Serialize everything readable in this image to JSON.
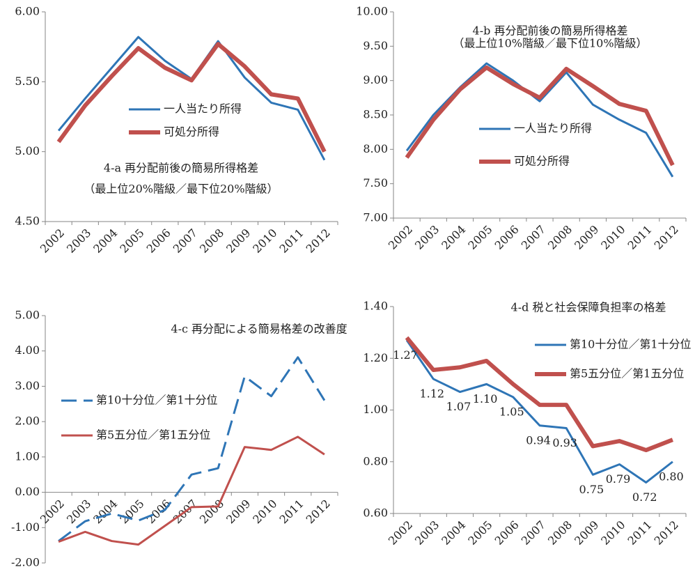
{
  "chart_data": [
    {
      "type": "line",
      "title": "4-a 再分配前後の簡易所得格差",
      "subtitle": "（最上位20%階級／最下位20%階級）",
      "categories": [
        "2002",
        "2003",
        "2004",
        "2005",
        "2006",
        "2007",
        "2008",
        "2009",
        "2010",
        "2011",
        "2012"
      ],
      "series": [
        {
          "name": "一人当たり所得",
          "color": "#2e75b6",
          "values": [
            5.15,
            5.38,
            5.6,
            5.82,
            5.65,
            5.52,
            5.79,
            5.53,
            5.35,
            5.3,
            4.94
          ]
        },
        {
          "name": "可処分所得",
          "color": "#c0504d",
          "values": [
            5.07,
            5.33,
            5.54,
            5.74,
            5.6,
            5.51,
            5.77,
            5.61,
            5.41,
            5.38,
            5.0
          ]
        }
      ],
      "ylim": [
        4.5,
        6.0
      ],
      "yticks": [
        {
          "value": 4.5,
          "label": "4.50"
        },
        {
          "value": 5,
          "label": "5.00"
        },
        {
          "value": 5.5,
          "label": "5.50"
        },
        {
          "value": 6,
          "label": "6.00"
        }
      ]
    },
    {
      "type": "line",
      "title": "4-b 再分配前後の簡易所得格差",
      "subtitle": "（最上位10%階級／最下位10%階級）",
      "categories": [
        "2002",
        "2003",
        "2004",
        "2005",
        "2006",
        "2007",
        "2008",
        "2009",
        "2010",
        "2011",
        "2012"
      ],
      "series": [
        {
          "name": "一人当たり所得",
          "color": "#2e75b6",
          "values": [
            7.98,
            8.5,
            8.9,
            9.25,
            9.0,
            8.7,
            9.12,
            8.65,
            8.43,
            8.24,
            7.6
          ]
        },
        {
          "name": "可処分所得",
          "color": "#c0504d",
          "values": [
            7.88,
            8.43,
            8.87,
            9.19,
            8.95,
            8.75,
            9.17,
            8.92,
            8.66,
            8.56,
            7.77
          ]
        }
      ],
      "ylim": [
        7.0,
        10.0
      ],
      "yticks": [
        {
          "value": 7,
          "label": "7.00"
        },
        {
          "value": 7.5,
          "label": "7.50"
        },
        {
          "value": 8,
          "label": "8.00"
        },
        {
          "value": 8.5,
          "label": "8.50"
        },
        {
          "value": 9,
          "label": "9.00"
        },
        {
          "value": 9.5,
          "label": "9.50"
        },
        {
          "value": 10,
          "label": "10.00"
        }
      ]
    },
    {
      "type": "line",
      "title": "4-c 再分配による簡易格差の改善度",
      "categories": [
        "2002",
        "2003",
        "2004",
        "2005",
        "2006",
        "2007",
        "2008",
        "2009",
        "2010",
        "2011",
        "2012"
      ],
      "series": [
        {
          "name": "第10十分位／第1十分位",
          "color": "#2e75b6",
          "dashed": true,
          "values": [
            -1.38,
            -0.82,
            -0.6,
            -0.8,
            -0.5,
            0.5,
            0.68,
            3.28,
            2.72,
            3.82,
            2.6
          ]
        },
        {
          "name": "第5五分位／第1五分位",
          "color": "#c0504d",
          "values": [
            -1.4,
            -1.12,
            -1.38,
            -1.48,
            -0.95,
            -0.42,
            -0.4,
            1.28,
            1.2,
            1.57,
            1.07
          ]
        }
      ],
      "ylim": [
        -2.0,
        5.0
      ],
      "yticks": [
        {
          "value": -2,
          "label": "-2.00"
        },
        {
          "value": -1,
          "label": "-1.00"
        },
        {
          "value": 0,
          "label": "0.00"
        },
        {
          "value": 1,
          "label": "1.00"
        },
        {
          "value": 2,
          "label": "2.00"
        },
        {
          "value": 3,
          "label": "3.00"
        },
        {
          "value": 4,
          "label": "4.00"
        },
        {
          "value": 5,
          "label": "5.00"
        }
      ]
    },
    {
      "type": "line",
      "title": "4-d 税と社会保障負担率の格差",
      "categories": [
        "2002",
        "2003",
        "2004",
        "2005",
        "2006",
        "2007",
        "2008",
        "2009",
        "2010",
        "2011",
        "2012"
      ],
      "series": [
        {
          "name": "第10十分位／第1十分位",
          "color": "#2e75b6",
          "values": [
            1.27,
            1.12,
            1.07,
            1.1,
            1.05,
            0.94,
            0.93,
            0.75,
            0.79,
            0.72,
            0.8
          ],
          "value_labels": [
            "1.27",
            "1.12",
            "1.07",
            "1.10",
            "1.05",
            "0.94",
            "0.93",
            "0.75",
            "0.79",
            "0.72",
            "0.80"
          ]
        },
        {
          "name": "第5五分位／第1五分位",
          "color": "#c0504d",
          "values": [
            1.28,
            1.155,
            1.165,
            1.19,
            1.1,
            1.02,
            1.02,
            0.86,
            0.88,
            0.845,
            0.885
          ]
        }
      ],
      "ylim": [
        0.6,
        1.4
      ],
      "yticks": [
        {
          "value": 0.6,
          "label": "0.60"
        },
        {
          "value": 0.8,
          "label": "0.80"
        },
        {
          "value": 1,
          "label": "1.00"
        },
        {
          "value": 1.2,
          "label": "1.20"
        },
        {
          "value": 1.4,
          "label": "1.40"
        }
      ]
    }
  ]
}
